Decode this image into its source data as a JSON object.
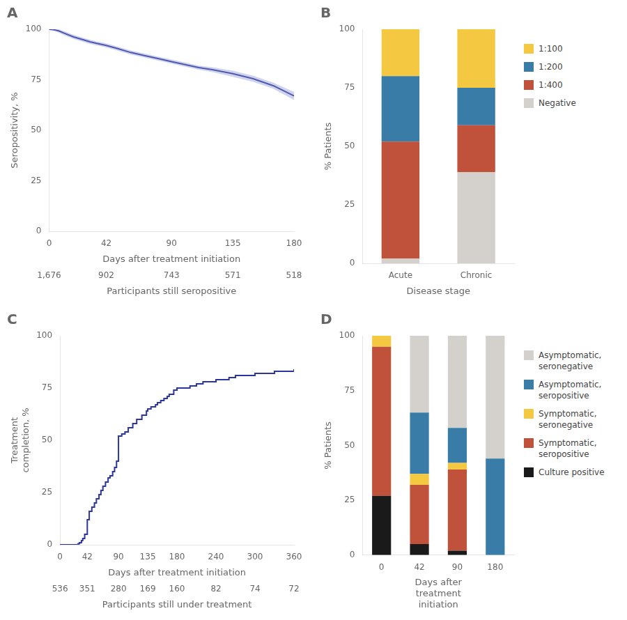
{
  "chart_data": [
    {
      "type": "line",
      "title": "A",
      "xlabel": "Days after treatment initiation",
      "ylabel": "Seropositivity, %",
      "x": [
        0,
        3,
        7,
        12,
        18,
        25,
        30,
        35,
        42,
        50,
        60,
        70,
        80,
        90,
        100,
        110,
        120,
        135,
        150,
        165,
        180
      ],
      "values": [
        100,
        99.8,
        99.2,
        97.8,
        96.2,
        94.8,
        93.8,
        93.0,
        92.0,
        90.5,
        88.5,
        87.0,
        85.5,
        84.0,
        82.5,
        81.0,
        80.0,
        78.0,
        75.5,
        72.0,
        67.0
      ],
      "color": "#2b35a0",
      "ci_upper": [
        100,
        100,
        100,
        98.8,
        97.2,
        95.8,
        94.8,
        94.0,
        93.0,
        91.5,
        89.5,
        88.0,
        86.5,
        85.0,
        83.5,
        82.0,
        81.2,
        79.5,
        77.0,
        73.5,
        69.0
      ],
      "ci_lower": [
        100,
        99.6,
        98.4,
        96.8,
        95.2,
        93.8,
        92.8,
        92.0,
        91.0,
        89.5,
        87.5,
        86.0,
        84.5,
        83.0,
        81.5,
        80.0,
        78.8,
        76.5,
        74.0,
        70.5,
        65.0
      ],
      "ci_color": "#8890cc",
      "xlim": [
        0,
        180
      ],
      "xticks": [
        0,
        42,
        90,
        135,
        180
      ],
      "ylim": [
        0,
        100
      ],
      "yticks": [
        0,
        25,
        50,
        75,
        100
      ],
      "grid": false,
      "participants": {
        "title": "Participants still seropositive",
        "x": [
          0,
          42,
          90,
          135,
          180
        ],
        "labels": [
          "1,676",
          "902",
          "743",
          "571",
          "518"
        ]
      }
    },
    {
      "type": "bar",
      "title": "B",
      "stacked": true,
      "xlabel": "Disease stage",
      "ylabel": "% Patients",
      "categories": [
        "Acute",
        "Chronic"
      ],
      "series": [
        {
          "name": "Negative",
          "color": "#d4d0cb",
          "values": [
            2,
            39
          ]
        },
        {
          "name": "1:400",
          "color": "#c0513a",
          "values": [
            50,
            20
          ]
        },
        {
          "name": "1:200",
          "color": "#3a7ca8",
          "values": [
            28,
            16
          ]
        },
        {
          "name": "1:100",
          "color": "#f5c842",
          "values": [
            20,
            25
          ]
        }
      ],
      "ylim": [
        0,
        100
      ],
      "yticks": [
        0,
        25,
        50,
        75,
        100
      ],
      "grid": false,
      "legend": "right"
    },
    {
      "type": "line",
      "title": "C",
      "line_style": "steps",
      "xlabel": "Days after treatment initiation",
      "ylabel": "Treatment\ncompletion, %",
      "x": [
        0,
        28,
        30,
        33,
        35,
        38,
        42,
        45,
        49,
        53,
        56,
        60,
        63,
        66,
        70,
        74,
        77,
        81,
        84,
        87,
        90,
        95,
        100,
        105,
        112,
        118,
        126,
        133,
        135,
        140,
        147,
        150,
        155,
        160,
        165,
        168,
        175,
        180,
        200,
        210,
        220,
        240,
        260,
        270,
        300,
        330,
        360
      ],
      "values": [
        0,
        0.5,
        1,
        2,
        3,
        5,
        12,
        16,
        18,
        20,
        22,
        24,
        26,
        28,
        30,
        32,
        33,
        35,
        37,
        40,
        52,
        53,
        54,
        56,
        58,
        60,
        62,
        64,
        65,
        66,
        67,
        68,
        69,
        70,
        71,
        72,
        74,
        75,
        76,
        77,
        78,
        79,
        80,
        81,
        82,
        83,
        84
      ],
      "color": "#2b35a0",
      "xlim": [
        0,
        360
      ],
      "xticks": [
        0,
        42,
        90,
        135,
        180,
        240,
        300,
        360
      ],
      "ylim": [
        0,
        100
      ],
      "yticks": [
        0,
        25,
        50,
        75,
        100
      ],
      "grid": false,
      "participants": {
        "title": "Participants still under treatment",
        "x": [
          0,
          42,
          90,
          135,
          180,
          240,
          300,
          360
        ],
        "labels": [
          "536",
          "351",
          "280",
          "169",
          "160",
          "82",
          "74",
          "72"
        ]
      }
    },
    {
      "type": "bar",
      "title": "D",
      "stacked": true,
      "xlabel": "Days after\ntreatment\ninitiation",
      "ylabel": "% Patients",
      "categories": [
        "0",
        "42",
        "90",
        "180"
      ],
      "series": [
        {
          "name": "Culture positive",
          "color": "#1a1a1a",
          "values": [
            27,
            5,
            2,
            0
          ]
        },
        {
          "name": "Symptomatic,\nseropositive",
          "color": "#c0513a",
          "values": [
            68,
            27,
            37,
            0
          ]
        },
        {
          "name": "Symptomatic,\nseronegative",
          "color": "#f5c842",
          "values": [
            5,
            5,
            3,
            0
          ]
        },
        {
          "name": "Asymptomatic,\nseropositive",
          "color": "#3a7ca8",
          "values": [
            0,
            28,
            16,
            44
          ]
        },
        {
          "name": "Asymptomatic,\nseronegative",
          "color": "#d4d0cb",
          "values": [
            0,
            35,
            42,
            56
          ]
        }
      ],
      "ylim": [
        0,
        100
      ],
      "yticks": [
        0,
        25,
        50,
        75,
        100
      ],
      "grid": false,
      "legend": "right"
    }
  ]
}
